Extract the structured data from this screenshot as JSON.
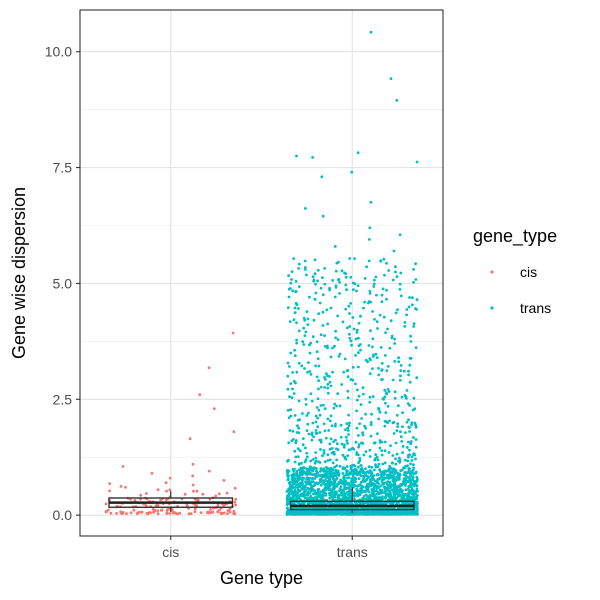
{
  "chart_data": {
    "type": "box-jitter",
    "xlabel": "Gene type",
    "ylabel": "Gene wise dispersion",
    "categories": [
      "cis",
      "trans"
    ],
    "ylim": [
      -0.45,
      10.9
    ],
    "yticks": [
      0.0,
      2.5,
      5.0,
      7.5,
      10.0
    ],
    "ytick_labels": [
      "0.0",
      "2.5",
      "5.0",
      "7.5",
      "10.0"
    ],
    "grid": true,
    "legend": {
      "title": "gene_type",
      "position": "right",
      "entries": [
        {
          "label": "cis",
          "color": "#F8766D"
        },
        {
          "label": "trans",
          "color": "#00BFC4"
        }
      ]
    },
    "boxes": [
      {
        "category": "cis",
        "q1": 0.17,
        "median": 0.27,
        "q3": 0.37,
        "whisker_low": 0.07,
        "whisker_high": 0.52
      },
      {
        "category": "trans",
        "q1": 0.12,
        "median": 0.2,
        "q3": 0.3,
        "whisker_low": 0.04,
        "whisker_high": 0.6
      }
    ],
    "series": [
      {
        "name": "cis",
        "color": "#F8766D",
        "outliers": [
          3.93,
          3.18,
          2.6,
          2.3,
          1.8,
          1.65,
          1.1,
          1.05,
          0.95,
          0.9,
          0.85,
          0.8,
          0.75,
          0.7,
          0.68,
          0.65,
          0.62,
          0.6,
          0.58,
          0.55
        ],
        "bulk_count": 160,
        "bulk_range": [
          0.03,
          0.55
        ]
      },
      {
        "name": "trans",
        "color": "#00BFC4",
        "outliers": [
          10.42,
          9.42,
          8.95,
          7.82,
          7.75,
          7.72,
          7.62,
          7.4,
          7.3,
          6.75,
          6.62,
          6.45,
          6.2,
          6.05,
          5.95,
          5.8,
          5.7
        ],
        "bulk_count": 2600,
        "bulk_range": [
          0.02,
          1.0
        ],
        "mid_count": 650,
        "mid_range": [
          1.0,
          5.6
        ]
      }
    ]
  }
}
